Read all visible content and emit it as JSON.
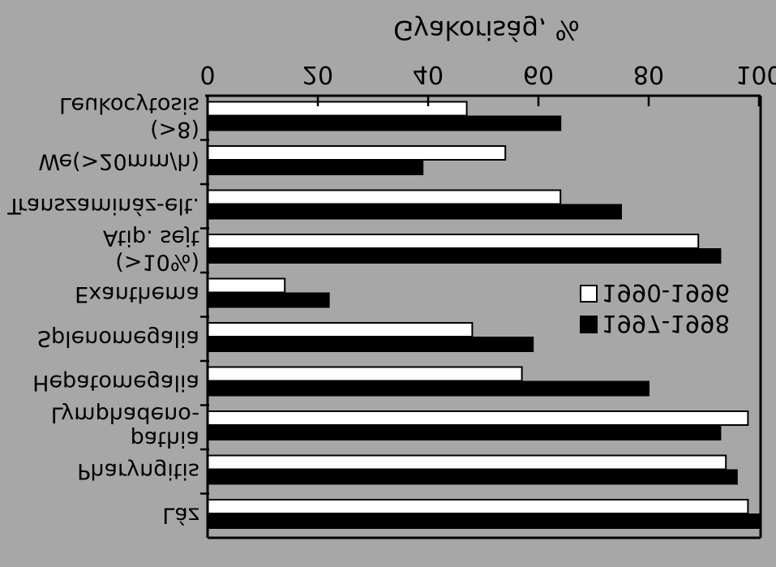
{
  "chart_data": {
    "type": "bar",
    "orientation": "horizontal",
    "text_rendering": "vertically mirrored",
    "title": "Gyakoriság, %",
    "xlim": [
      0,
      100
    ],
    "xticks": [
      "0",
      "20",
      "40",
      "60",
      "80",
      "100"
    ],
    "grid": false,
    "legend_position": "right-middle",
    "categories": [
      [
        "Leukocytosis",
        "(>8)"
      ],
      [
        "We(>20mm/h)"
      ],
      [
        "Transzamináz-elt."
      ],
      [
        "Atip. sejt",
        "(>10%)"
      ],
      [
        "Exanthema"
      ],
      [
        "Splenomegalia"
      ],
      [
        "Hepatomegalia"
      ],
      [
        "Lymphadeno-",
        "pathia"
      ],
      [
        "Pharyngitis"
      ],
      [
        "Láz"
      ]
    ],
    "series": [
      {
        "name": "1990-1996",
        "fill": "#ffffff",
        "values": [
          47,
          54,
          64,
          89,
          14,
          48,
          57,
          98,
          94,
          98
        ]
      },
      {
        "name": "1997-1998",
        "fill": "#000000",
        "values": [
          64,
          39,
          75,
          93,
          22,
          59,
          80,
          93,
          96,
          100
        ]
      }
    ]
  }
}
